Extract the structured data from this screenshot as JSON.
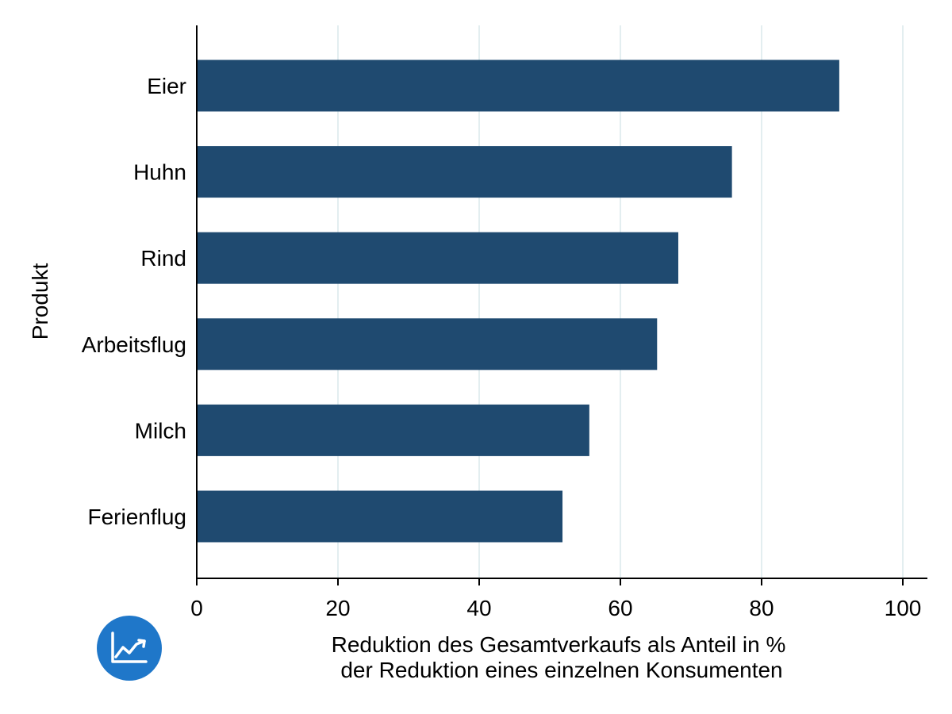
{
  "colors": {
    "bar": "#1f4a70",
    "grid": "#e3eef0",
    "axis": "#000000",
    "logo": "#1f77c9"
  },
  "logo_icon": "chart-trend-icon",
  "chart_data": {
    "type": "bar",
    "orientation": "horizontal",
    "categories": [
      "Eier",
      "Huhn",
      "Rind",
      "Arbeitsflug",
      "Milch",
      "Ferienflug"
    ],
    "values": [
      91,
      75.8,
      68.2,
      65.2,
      55.6,
      51.8
    ],
    "title": "",
    "xlabel": [
      "Reduktion des Gesamtverkaufs als Anteil in %",
      "der Reduktion eines einzelnen Konsumenten"
    ],
    "ylabel": "Produkt",
    "xlim": [
      0,
      100
    ],
    "xticks": [
      0,
      20,
      40,
      60,
      80,
      100
    ],
    "grid": true
  }
}
